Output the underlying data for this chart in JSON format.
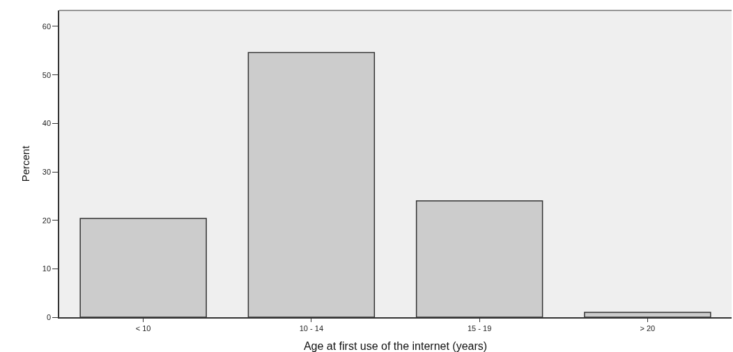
{
  "chart_data": {
    "type": "bar",
    "xlabel": "Age at first use of the internet (years)",
    "ylabel": "Percent",
    "categories": [
      "< 10",
      "10 - 14",
      "15 - 19",
      "> 20"
    ],
    "values": [
      20.4,
      54.6,
      24.0,
      1.0
    ],
    "color": "#cccccc",
    "ylim": [
      0,
      63.3
    ],
    "yticks": [
      0,
      10,
      20,
      30,
      40,
      50,
      60
    ],
    "grid": false,
    "legend": false
  }
}
